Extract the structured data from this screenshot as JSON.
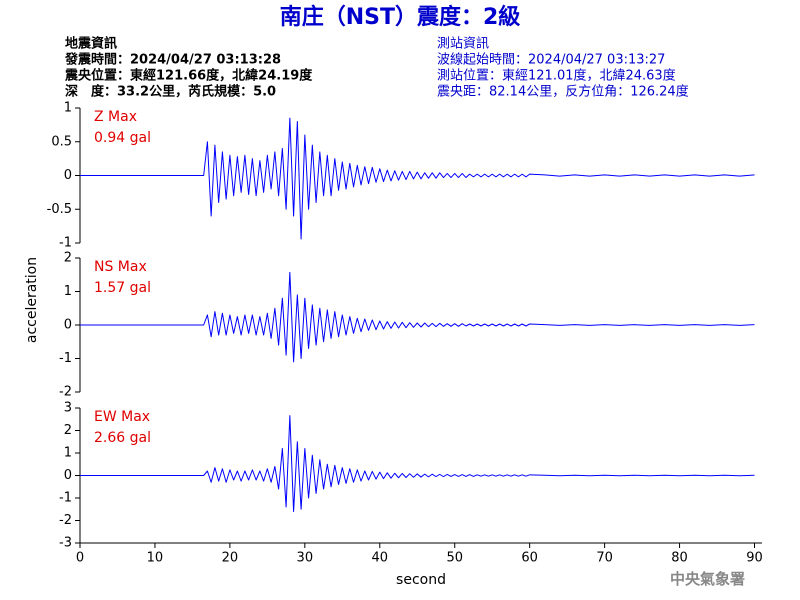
{
  "title": "南庄（NST）震度：2級",
  "info_left": [
    "地震資訊",
    "發震時間：2024/04/27 03:13:28",
    "震央位置：東經121.66度，北緯24.19度",
    "深　度：33.2公里，芮氏規模：5.0"
  ],
  "info_right": [
    "測站資訊",
    "波線起始時間：2024/04/27 03:13:27",
    "測站位置：東經121.01度，北緯24.63度",
    "震央距：82.14公里，反方位角：126.24度"
  ],
  "footer": "中央氣象署",
  "chart_data": [
    {
      "type": "line",
      "label": "Z Max",
      "annotation": "0.94 gal",
      "color": "#0000ff",
      "xlim": [
        0,
        91
      ],
      "ylim": [
        -1,
        1
      ],
      "yticks": [
        -1,
        -0.5,
        0,
        0.5,
        1
      ],
      "x": [
        0,
        16.5,
        17,
        17.5,
        18,
        18.5,
        19,
        19.5,
        20,
        20.5,
        21,
        21.5,
        22,
        22.5,
        23,
        23.5,
        24,
        24.5,
        25,
        25.5,
        26,
        26.5,
        27,
        27.5,
        28,
        28.5,
        29,
        29.5,
        30,
        30.5,
        31,
        31.5,
        32,
        32.5,
        33,
        33.5,
        34,
        34.5,
        35,
        35.5,
        36,
        36.5,
        37,
        37.5,
        38,
        38.5,
        39,
        39.5,
        40,
        40.5,
        41,
        41.5,
        42,
        42.5,
        43,
        43.5,
        44,
        44.5,
        45,
        45.5,
        46,
        46.5,
        47,
        47.5,
        48,
        48.5,
        49,
        49.5,
        50,
        50.5,
        51,
        51.5,
        52,
        52.5,
        53,
        53.5,
        54,
        54.5,
        55,
        55.5,
        56,
        56.5,
        57,
        57.5,
        58,
        58.5,
        59,
        59.5,
        60,
        62,
        64,
        66,
        68,
        70,
        72,
        74,
        76,
        78,
        80,
        82,
        84,
        86,
        88,
        90
      ],
      "values": [
        0,
        0,
        0.5,
        -0.6,
        0.45,
        -0.4,
        0.35,
        -0.35,
        0.3,
        -0.3,
        0.28,
        -0.25,
        0.3,
        -0.28,
        0.25,
        -0.3,
        0.22,
        -0.25,
        0.3,
        -0.2,
        0.35,
        -0.3,
        0.4,
        -0.5,
        0.85,
        -0.6,
        0.8,
        -0.94,
        0.6,
        -0.5,
        0.45,
        -0.4,
        0.35,
        -0.3,
        0.3,
        -0.3,
        0.25,
        -0.22,
        0.2,
        -0.2,
        0.18,
        -0.17,
        0.15,
        -0.14,
        0.13,
        -0.12,
        0.12,
        -0.1,
        0.1,
        -0.09,
        0.08,
        -0.08,
        0.07,
        -0.07,
        0.06,
        -0.06,
        0.06,
        -0.05,
        0.05,
        -0.05,
        0.04,
        -0.04,
        0.04,
        -0.04,
        0.04,
        -0.03,
        0.03,
        -0.03,
        0.03,
        -0.03,
        0.03,
        -0.03,
        0.02,
        -0.02,
        0.02,
        -0.02,
        0.02,
        -0.02,
        0.02,
        -0.02,
        0.02,
        -0.02,
        0.02,
        -0.02,
        0.02,
        -0.02,
        0.02,
        -0.02,
        0.02,
        0.01,
        -0.01,
        0.01,
        -0.01,
        0.01,
        -0.01,
        0.01,
        -0.01,
        0.01,
        -0.01,
        0.01,
        -0.01,
        0.01,
        -0.01,
        0.01
      ]
    },
    {
      "type": "line",
      "label": "NS Max",
      "annotation": "1.57 gal",
      "color": "#0000ff",
      "ylabel": "acceleration",
      "xlim": [
        0,
        91
      ],
      "ylim": [
        -2,
        2
      ],
      "yticks": [
        -2,
        -1,
        0,
        1,
        2
      ],
      "x": [
        0,
        16.5,
        17,
        17.5,
        18,
        18.5,
        19,
        19.5,
        20,
        20.5,
        21,
        21.5,
        22,
        22.5,
        23,
        23.5,
        24,
        24.5,
        25,
        25.5,
        26,
        26.5,
        27,
        27.5,
        28,
        28.5,
        29,
        29.5,
        30,
        30.5,
        31,
        31.5,
        32,
        32.5,
        33,
        33.5,
        34,
        34.5,
        35,
        35.5,
        36,
        36.5,
        37,
        37.5,
        38,
        38.5,
        39,
        39.5,
        40,
        40.5,
        41,
        41.5,
        42,
        42.5,
        43,
        43.5,
        44,
        44.5,
        45,
        45.5,
        46,
        46.5,
        47,
        47.5,
        48,
        48.5,
        49,
        49.5,
        50,
        50.5,
        51,
        51.5,
        52,
        52.5,
        53,
        53.5,
        54,
        54.5,
        55,
        55.5,
        56,
        56.5,
        57,
        57.5,
        58,
        58.5,
        59,
        59.5,
        60,
        62,
        64,
        66,
        68,
        70,
        72,
        74,
        76,
        78,
        80,
        82,
        84,
        86,
        88,
        90
      ],
      "values": [
        0,
        0,
        0.3,
        -0.35,
        0.4,
        -0.3,
        0.35,
        -0.3,
        0.3,
        -0.25,
        0.25,
        -0.3,
        0.3,
        -0.25,
        0.3,
        -0.3,
        0.25,
        -0.3,
        0.35,
        -0.4,
        0.5,
        -0.6,
        0.8,
        -0.9,
        1.57,
        -1.1,
        0.9,
        -1.0,
        0.8,
        -0.7,
        0.6,
        -0.6,
        0.5,
        -0.5,
        0.45,
        -0.4,
        0.4,
        -0.35,
        0.3,
        -0.3,
        0.25,
        -0.25,
        0.2,
        -0.2,
        0.18,
        -0.16,
        0.15,
        -0.14,
        0.12,
        -0.12,
        0.1,
        -0.1,
        0.09,
        -0.09,
        0.08,
        -0.08,
        0.07,
        -0.07,
        0.06,
        -0.06,
        0.06,
        -0.05,
        0.05,
        -0.05,
        0.05,
        -0.04,
        0.04,
        -0.04,
        0.04,
        -0.04,
        0.04,
        -0.03,
        0.03,
        -0.03,
        0.03,
        -0.03,
        0.03,
        -0.03,
        0.03,
        -0.03,
        0.03,
        -0.03,
        0.03,
        -0.03,
        0.03,
        -0.03,
        0.03,
        -0.03,
        0.03,
        0.01,
        -0.01,
        0.01,
        -0.01,
        0.01,
        -0.01,
        0.01,
        -0.01,
        0.01,
        -0.01,
        0.01,
        -0.01,
        0.01,
        -0.01,
        0.01
      ]
    },
    {
      "type": "line",
      "label": "EW Max",
      "annotation": "2.66 gal",
      "color": "#0000ff",
      "xlabel": "second",
      "xlim": [
        0,
        91
      ],
      "ylim": [
        -3,
        3
      ],
      "yticks": [
        -3,
        -2,
        -1,
        0,
        1,
        2,
        3
      ],
      "xticks": [
        0,
        10,
        20,
        30,
        40,
        50,
        60,
        70,
        80,
        90
      ],
      "x": [
        0,
        16.5,
        17,
        17.5,
        18,
        18.5,
        19,
        19.5,
        20,
        20.5,
        21,
        21.5,
        22,
        22.5,
        23,
        23.5,
        24,
        24.5,
        25,
        25.5,
        26,
        26.5,
        27,
        27.5,
        28,
        28.5,
        29,
        29.5,
        30,
        30.5,
        31,
        31.5,
        32,
        32.5,
        33,
        33.5,
        34,
        34.5,
        35,
        35.5,
        36,
        36.5,
        37,
        37.5,
        38,
        38.5,
        39,
        39.5,
        40,
        40.5,
        41,
        41.5,
        42,
        42.5,
        43,
        43.5,
        44,
        44.5,
        45,
        45.5,
        46,
        46.5,
        47,
        47.5,
        48,
        48.5,
        49,
        49.5,
        50,
        50.5,
        51,
        51.5,
        52,
        52.5,
        53,
        53.5,
        54,
        54.5,
        55,
        55.5,
        56,
        56.5,
        57,
        57.5,
        58,
        58.5,
        59,
        59.5,
        60,
        62,
        64,
        66,
        68,
        70,
        72,
        74,
        76,
        78,
        80,
        82,
        84,
        86,
        88,
        90
      ],
      "values": [
        0,
        0,
        0.2,
        -0.3,
        0.35,
        -0.25,
        0.3,
        -0.3,
        0.25,
        -0.2,
        0.2,
        -0.25,
        0.2,
        -0.2,
        0.25,
        -0.2,
        0.2,
        -0.25,
        0.3,
        -0.3,
        0.4,
        -0.6,
        1.2,
        -1.4,
        2.66,
        -1.6,
        1.5,
        -1.5,
        1.2,
        -1.0,
        0.9,
        -0.8,
        0.7,
        -0.6,
        0.5,
        -0.5,
        0.45,
        -0.4,
        0.35,
        -0.35,
        0.3,
        -0.3,
        0.25,
        -0.25,
        0.2,
        -0.2,
        0.18,
        -0.16,
        0.15,
        -0.14,
        0.12,
        -0.12,
        0.1,
        -0.1,
        0.09,
        -0.09,
        0.08,
        -0.08,
        0.07,
        -0.07,
        0.06,
        -0.06,
        0.06,
        -0.05,
        0.05,
        -0.05,
        0.05,
        -0.04,
        0.04,
        -0.04,
        0.04,
        -0.04,
        0.04,
        -0.04,
        0.03,
        -0.03,
        0.03,
        -0.03,
        0.03,
        -0.03,
        0.03,
        -0.03,
        0.03,
        -0.03,
        0.03,
        -0.03,
        0.03,
        -0.03,
        0.03,
        0.01,
        -0.01,
        0.01,
        -0.01,
        0.01,
        -0.01,
        0.01,
        -0.01,
        0.01,
        -0.01,
        0.01,
        -0.01,
        0.01,
        -0.01,
        0.01
      ]
    }
  ]
}
